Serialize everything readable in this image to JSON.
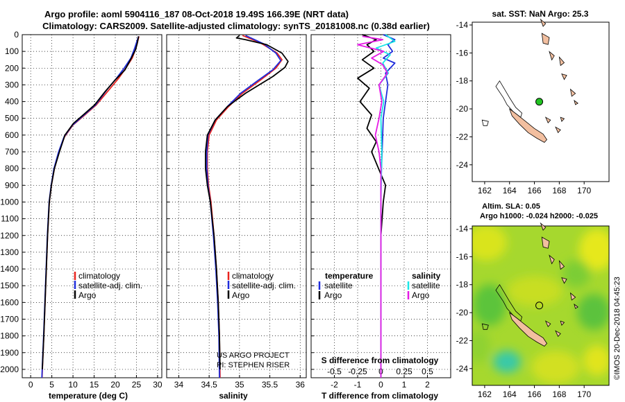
{
  "header": {
    "line1": "Argo profile: aoml 5904116_187 08-Oct-2018 19.49S 166.39E (NRT data)",
    "line2": "Climatology: CARS2009. Satellite-adjusted climatology: synTS_20181008.nc (0.38d earlier)"
  },
  "colors": {
    "climatology": "#e8231e",
    "satellite": "#1f2ddb",
    "argo": "#000000",
    "cyan": "#18e6e6",
    "magenta": "#e619e6",
    "land": "#f2bfa0",
    "argo_marker": "#22c422"
  },
  "credits": {
    "line1": "US ARGO PROJECT",
    "line2": "PI: STEPHEN RISER"
  },
  "timestamp": "©IMOS 20-Dec-2018 04:45:23",
  "chart_data": [
    {
      "type": "line",
      "name": "temperature-profile",
      "xlabel": "temperature (deg C)",
      "ylabel": "pressure",
      "xlim": [
        -2,
        31
      ],
      "ylim": [
        2050,
        0
      ],
      "xticks": [
        0,
        5,
        10,
        15,
        20,
        25,
        30
      ],
      "yticks": [
        0,
        100,
        200,
        300,
        400,
        500,
        600,
        700,
        800,
        900,
        1000,
        1100,
        1200,
        1300,
        1400,
        1500,
        1600,
        1700,
        1800,
        1900,
        2000
      ],
      "legend": [
        "climatology",
        "satellite-adj. clim.",
        "Argo"
      ],
      "series": [
        {
          "name": "climatology",
          "color": "#e8231e",
          "points": [
            [
              25.6,
              10
            ],
            [
              25.3,
              40
            ],
            [
              24.9,
              80
            ],
            [
              24.0,
              140
            ],
            [
              22.5,
              200
            ],
            [
              20.8,
              260
            ],
            [
              18.5,
              330
            ],
            [
              15.5,
              420
            ],
            [
              12.8,
              480
            ],
            [
              10.0,
              540
            ],
            [
              8.0,
              610
            ],
            [
              6.7,
              700
            ],
            [
              5.6,
              800
            ],
            [
              4.9,
              900
            ],
            [
              4.4,
              1000
            ],
            [
              4.0,
              1200
            ],
            [
              3.7,
              1400
            ],
            [
              3.4,
              1600
            ],
            [
              3.1,
              1800
            ],
            [
              2.85,
              1950
            ],
            [
              2.7,
              2050
            ]
          ]
        },
        {
          "name": "satellite",
          "color": "#1f2ddb",
          "points": [
            [
              25.5,
              10
            ],
            [
              25.1,
              40
            ],
            [
              24.6,
              80
            ],
            [
              23.7,
              140
            ],
            [
              22.1,
              200
            ],
            [
              20.3,
              260
            ],
            [
              18.0,
              330
            ],
            [
              15.3,
              420
            ],
            [
              12.6,
              480
            ],
            [
              9.9,
              540
            ],
            [
              7.9,
              610
            ],
            [
              6.6,
              700
            ],
            [
              5.5,
              800
            ],
            [
              4.85,
              900
            ],
            [
              4.35,
              1000
            ],
            [
              3.95,
              1200
            ],
            [
              3.65,
              1400
            ],
            [
              3.35,
              1600
            ],
            [
              3.05,
              1800
            ],
            [
              2.8,
              1950
            ],
            [
              2.65,
              2050
            ]
          ]
        },
        {
          "name": "argo",
          "color": "#000000",
          "points": [
            [
              25.5,
              10
            ],
            [
              25.2,
              50
            ],
            [
              24.8,
              90
            ],
            [
              23.6,
              150
            ],
            [
              22.3,
              210
            ],
            [
              20.0,
              270
            ],
            [
              17.6,
              340
            ],
            [
              15.1,
              420
            ],
            [
              12.4,
              480
            ],
            [
              10.1,
              530
            ],
            [
              8.1,
              600
            ],
            [
              6.8,
              700
            ],
            [
              5.6,
              800
            ],
            [
              4.9,
              900
            ],
            [
              4.4,
              1000
            ],
            [
              4.0,
              1200
            ],
            [
              3.7,
              1400
            ],
            [
              3.4,
              1600
            ],
            [
              3.1,
              1800
            ],
            [
              2.85,
              1950
            ],
            [
              2.75,
              2000
            ]
          ]
        }
      ]
    },
    {
      "type": "line",
      "name": "salinity-profile",
      "xlabel": "salinity",
      "xlim": [
        33.8,
        36.1
      ],
      "ylim": [
        2050,
        0
      ],
      "xticks": [
        34,
        34.5,
        35,
        35.5,
        36
      ],
      "xticklabels": [
        "34",
        "34.5",
        "35",
        "35.5",
        "36"
      ],
      "legend": [
        "climatology",
        "satellite-adj. clim.",
        "Argo"
      ],
      "series": [
        {
          "name": "climatology",
          "color": "#e8231e",
          "points": [
            [
              35.05,
              5
            ],
            [
              35.35,
              50
            ],
            [
              35.62,
              110
            ],
            [
              35.7,
              150
            ],
            [
              35.6,
              200
            ],
            [
              35.35,
              270
            ],
            [
              35.05,
              350
            ],
            [
              34.82,
              430
            ],
            [
              34.62,
              510
            ],
            [
              34.5,
              600
            ],
            [
              34.47,
              700
            ],
            [
              34.47,
              800
            ],
            [
              34.49,
              900
            ],
            [
              34.53,
              1000
            ],
            [
              34.58,
              1200
            ],
            [
              34.62,
              1400
            ],
            [
              34.65,
              1600
            ],
            [
              34.67,
              1800
            ],
            [
              34.68,
              2050
            ]
          ]
        },
        {
          "name": "satellite",
          "color": "#1f2ddb",
          "points": [
            [
              35.1,
              5
            ],
            [
              35.4,
              55
            ],
            [
              35.6,
              110
            ],
            [
              35.68,
              155
            ],
            [
              35.55,
              210
            ],
            [
              35.3,
              275
            ],
            [
              35.02,
              350
            ],
            [
              34.8,
              430
            ],
            [
              34.6,
              510
            ],
            [
              34.48,
              600
            ],
            [
              34.46,
              700
            ],
            [
              34.46,
              800
            ],
            [
              34.48,
              900
            ],
            [
              34.52,
              1000
            ],
            [
              34.57,
              1200
            ],
            [
              34.61,
              1400
            ],
            [
              34.64,
              1600
            ],
            [
              34.66,
              1800
            ],
            [
              34.67,
              2050
            ]
          ]
        },
        {
          "name": "argo",
          "color": "#000000",
          "points": [
            [
              35.0,
              5
            ],
            [
              34.95,
              20
            ],
            [
              35.1,
              30
            ],
            [
              35.45,
              60
            ],
            [
              35.7,
              110
            ],
            [
              35.8,
              160
            ],
            [
              35.75,
              195
            ],
            [
              35.55,
              250
            ],
            [
              35.1,
              350
            ],
            [
              34.8,
              430
            ],
            [
              34.6,
              510
            ],
            [
              34.47,
              600
            ],
            [
              34.44,
              700
            ],
            [
              34.44,
              800
            ],
            [
              34.47,
              900
            ],
            [
              34.52,
              1000
            ],
            [
              34.58,
              1200
            ],
            [
              34.62,
              1400
            ],
            [
              34.65,
              1600
            ],
            [
              34.67,
              1800
            ],
            [
              34.68,
              2000
            ]
          ]
        }
      ]
    },
    {
      "type": "line",
      "name": "difference-from-climatology",
      "xlabel": "T difference from climatology",
      "xlabel2": "S difference from climatology",
      "xlim": [
        -3,
        3
      ],
      "ylim": [
        2050,
        0
      ],
      "xticks": [
        -2,
        -1,
        0,
        1,
        2
      ],
      "xticks2": [
        -0.5,
        -0.25,
        0,
        0.25,
        0.5
      ],
      "xticklabels2": [
        "-0.5",
        "-0.25",
        "0",
        "0.25",
        "0.5"
      ],
      "s_scale": 4,
      "legend_temperature_title": "temperature",
      "legend_salinity_title": "salinity",
      "legend_temperature": [
        "satellite",
        "Argo"
      ],
      "legend_salinity": [
        "satellite",
        "Argo"
      ],
      "series": [
        {
          "name": "T satellite",
          "color": "#1f2ddb",
          "points": [
            [
              0.1,
              0
            ],
            [
              0.6,
              30
            ],
            [
              0.3,
              60
            ],
            [
              0.5,
              100
            ],
            [
              0.1,
              140
            ],
            [
              0.6,
              170
            ],
            [
              0.2,
              230
            ],
            [
              0.3,
              300
            ],
            [
              0.2,
              400
            ],
            [
              0.1,
              500
            ],
            [
              0.05,
              700
            ],
            [
              0.0,
              900
            ],
            [
              0.0,
              1200
            ],
            [
              0.0,
              1600
            ],
            [
              0.0,
              2050
            ]
          ]
        },
        {
          "name": "T argo",
          "color": "#000000",
          "points": [
            [
              -0.8,
              0
            ],
            [
              -0.2,
              30
            ],
            [
              -0.6,
              60
            ],
            [
              -0.3,
              100
            ],
            [
              -0.8,
              150
            ],
            [
              -0.3,
              200
            ],
            [
              -1.0,
              260
            ],
            [
              -0.5,
              320
            ],
            [
              -0.9,
              400
            ],
            [
              -0.4,
              480
            ],
            [
              -0.6,
              560
            ],
            [
              -0.2,
              640
            ],
            [
              -0.4,
              700
            ],
            [
              -0.1,
              800
            ],
            [
              0.2,
              900
            ],
            [
              0.1,
              1000
            ],
            [
              0.0,
              1200
            ],
            [
              0.0,
              1600
            ],
            [
              0.0,
              2050
            ]
          ]
        },
        {
          "name": "S satellite",
          "color": "#18e6e6",
          "points": [
            [
              0.05,
              0
            ],
            [
              0.15,
              40
            ],
            [
              -0.05,
              80
            ],
            [
              0.1,
              120
            ],
            [
              0.02,
              170
            ],
            [
              0.08,
              230
            ],
            [
              -0.02,
              300
            ],
            [
              0.03,
              400
            ],
            [
              0.0,
              500
            ],
            [
              0.01,
              700
            ],
            [
              0.0,
              1000
            ],
            [
              0.0,
              1500
            ],
            [
              0.0,
              2050
            ]
          ]
        },
        {
          "name": "S argo",
          "color": "#e619e6",
          "points": [
            [
              -0.2,
              10
            ],
            [
              0.02,
              30
            ],
            [
              -0.25,
              60
            ],
            [
              0.03,
              100
            ],
            [
              -0.1,
              140
            ],
            [
              0.02,
              180
            ],
            [
              0.07,
              230
            ],
            [
              -0.02,
              300
            ],
            [
              0.01,
              400
            ],
            [
              -0.02,
              500
            ],
            [
              -0.06,
              600
            ],
            [
              -0.02,
              700
            ],
            [
              0.0,
              800
            ],
            [
              0.0,
              1000
            ],
            [
              0.0,
              1600
            ],
            [
              0.0,
              2050
            ]
          ]
        }
      ]
    },
    {
      "type": "map",
      "name": "sst-map",
      "title": "sat. SST: NaN Argo: 25.3",
      "xlim": [
        161,
        172
      ],
      "ylim": [
        -25.2,
        -13.8
      ],
      "xticks": [
        162,
        164,
        166,
        168,
        170
      ],
      "yticks": [
        -14,
        -16,
        -18,
        -20,
        -22,
        -24
      ],
      "argo_position": [
        166.39,
        -19.49
      ]
    },
    {
      "type": "map",
      "name": "sla-map",
      "title1": "Altim. SLA: 0.05",
      "title2": "Argo h1000: -0.024 h2000: -0.025",
      "xlim": [
        161,
        172
      ],
      "ylim": [
        -25.2,
        -13.8
      ],
      "xticks": [
        162,
        164,
        166,
        168,
        170
      ],
      "yticks": [
        -14,
        -16,
        -18,
        -20,
        -22,
        -24
      ],
      "argo_position": [
        166.39,
        -19.49
      ]
    }
  ]
}
